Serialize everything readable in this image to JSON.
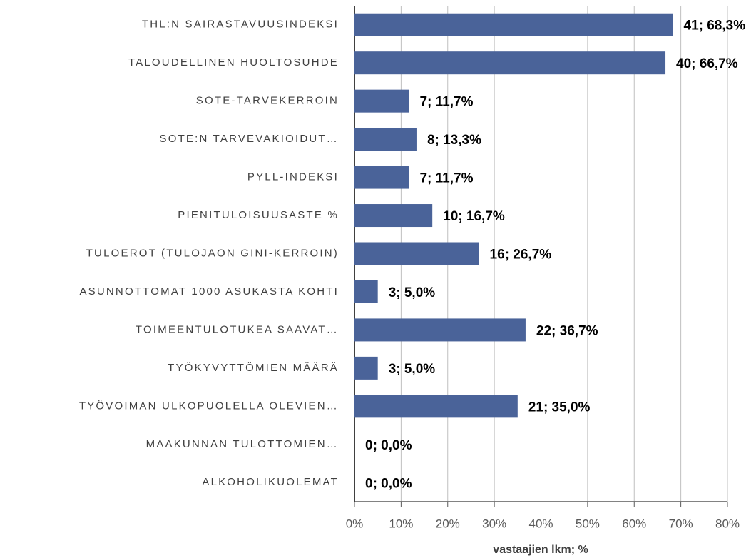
{
  "chart_data": {
    "type": "bar",
    "orientation": "horizontal",
    "x_label": "vastaajien lkm; %",
    "categories": [
      "THL:N SAIRASTAVUUSINDEKSI",
      "TALOUDELLINEN HUOLTOSUHDE",
      "SOTE-TARVEKERROIN",
      "SOTE:N TARVEVAKIOIDUT…",
      "PYLL-INDEKSI",
      "PIENITULOISUUSASTE %",
      "TULOEROT (TULOJAON GINI-KERROIN)",
      "ASUNNOTTOMAT 1000 ASUKASTA KOHTI",
      "TOIMEENTULOTUKEA SAAVAT…",
      "TYÖKYVYTTÖMIEN MÄÄRÄ",
      "TYÖVOIMAN ULKOPUOLELLA OLEVIEN…",
      "MAAKUNNAN TULOTTOMIEN…",
      "ALKOHOLIKUOLEMAT"
    ],
    "values": [
      68.3,
      66.7,
      11.7,
      13.3,
      11.7,
      16.7,
      26.7,
      5.0,
      36.7,
      5.0,
      35.0,
      0,
      0
    ],
    "value_labels": [
      "41; 68,3%",
      "40; 66,7%",
      "7; 11,7%",
      "8; 13,3%",
      "7; 11,7%",
      "10; 16,7%",
      "16; 26,7%",
      "3; 5,0%",
      "22; 36,7%",
      "3; 5,0%",
      "21; 35,0%",
      "0; 0,0%",
      "0; 0,0%"
    ],
    "color": "#4a6399",
    "xlim": [
      0,
      80
    ],
    "xticks": [
      {
        "value": 0,
        "label": "0%"
      },
      {
        "value": 10,
        "label": "10%"
      },
      {
        "value": 20,
        "label": "20%"
      },
      {
        "value": 30,
        "label": "30%"
      },
      {
        "value": 40,
        "label": "40%"
      },
      {
        "value": 50,
        "label": "50%"
      },
      {
        "value": 60,
        "label": "60%"
      },
      {
        "value": 70,
        "label": "70%"
      },
      {
        "value": 80,
        "label": "80%"
      }
    ],
    "grid": true
  }
}
